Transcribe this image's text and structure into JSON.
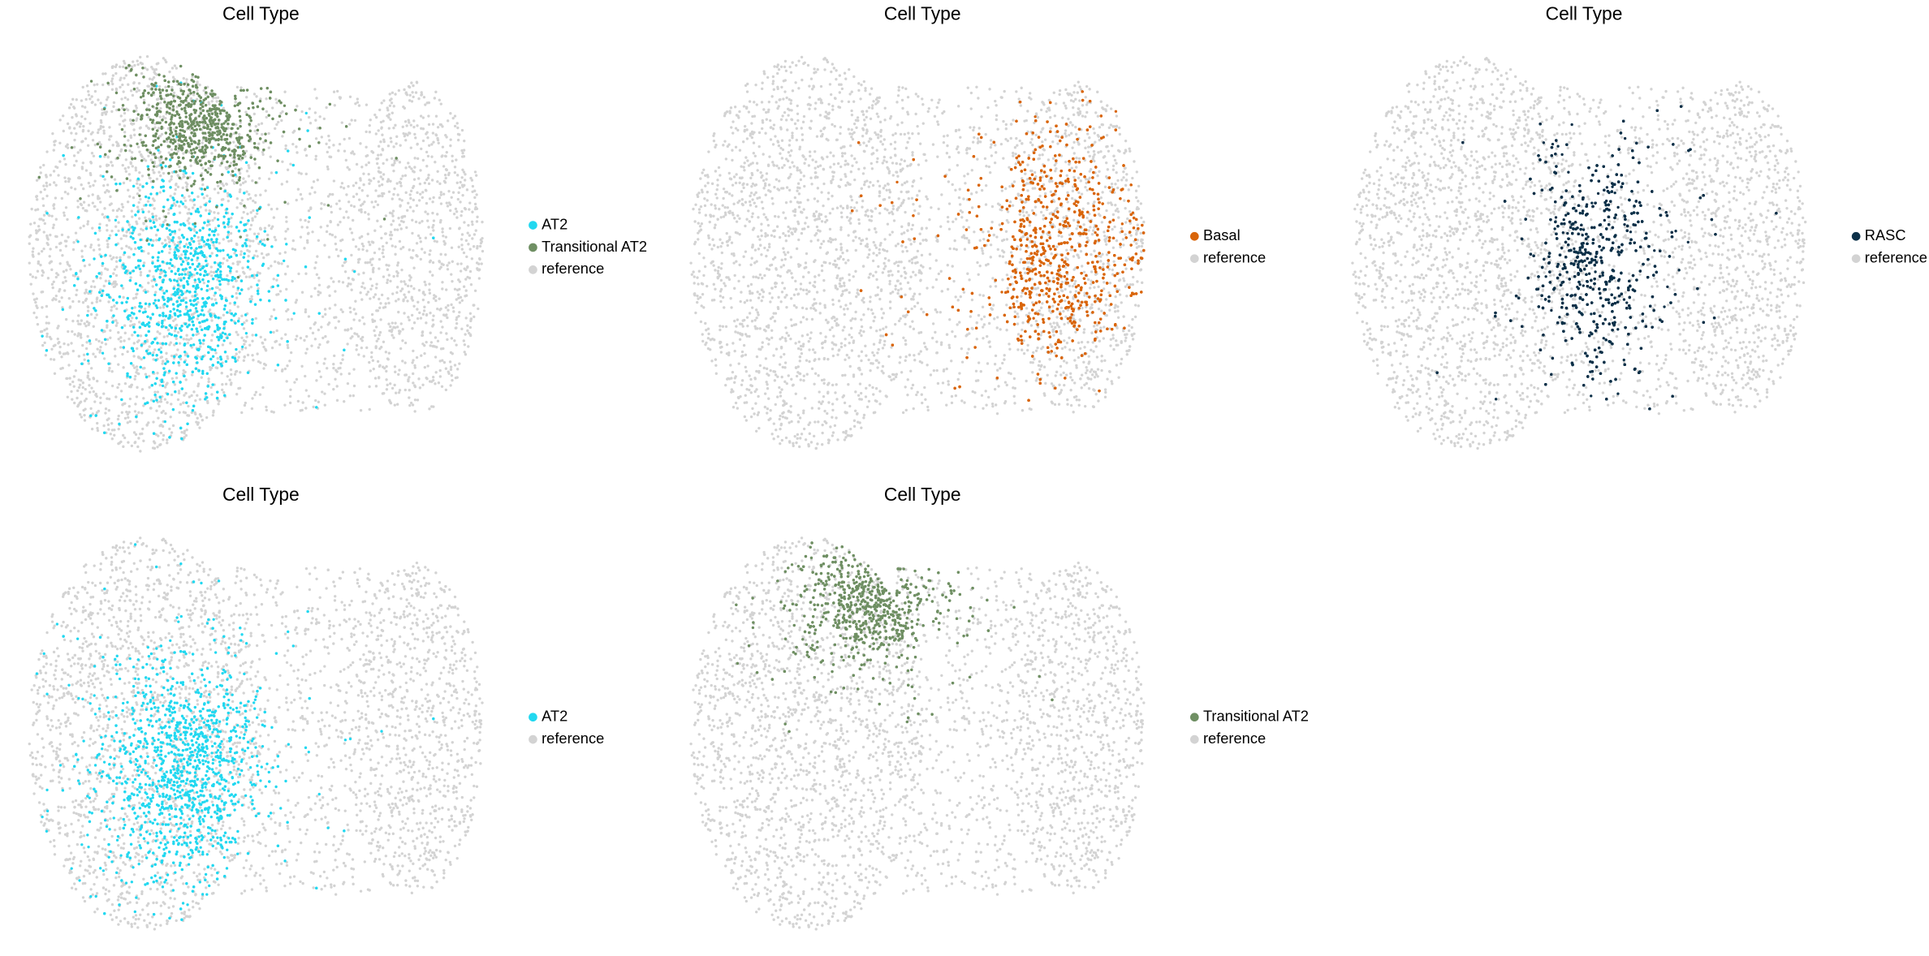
{
  "chart_data": [
    {
      "type": "scatter",
      "title": "Cell Type",
      "series": [
        {
          "name": "AT2",
          "color": "#22d8f0"
        },
        {
          "name": "Transitional AT2",
          "color": "#6f8f63"
        },
        {
          "name": "reference",
          "color": "#d3d3d3"
        }
      ]
    },
    {
      "type": "scatter",
      "title": "Cell Type",
      "series": [
        {
          "name": "Basal",
          "color": "#d9650a"
        },
        {
          "name": "reference",
          "color": "#d3d3d3"
        }
      ]
    },
    {
      "type": "scatter",
      "title": "Cell Type",
      "series": [
        {
          "name": "RASC",
          "color": "#0c3048"
        },
        {
          "name": "reference",
          "color": "#d3d3d3"
        }
      ]
    },
    {
      "type": "scatter",
      "title": "Cell Type",
      "series": [
        {
          "name": "AT2",
          "color": "#22d8f0"
        },
        {
          "name": "reference",
          "color": "#d3d3d3"
        }
      ]
    },
    {
      "type": "scatter",
      "title": "Cell Type",
      "series": [
        {
          "name": "Transitional AT2",
          "color": "#6f8f63"
        },
        {
          "name": "reference",
          "color": "#d3d3d3"
        }
      ]
    }
  ]
}
